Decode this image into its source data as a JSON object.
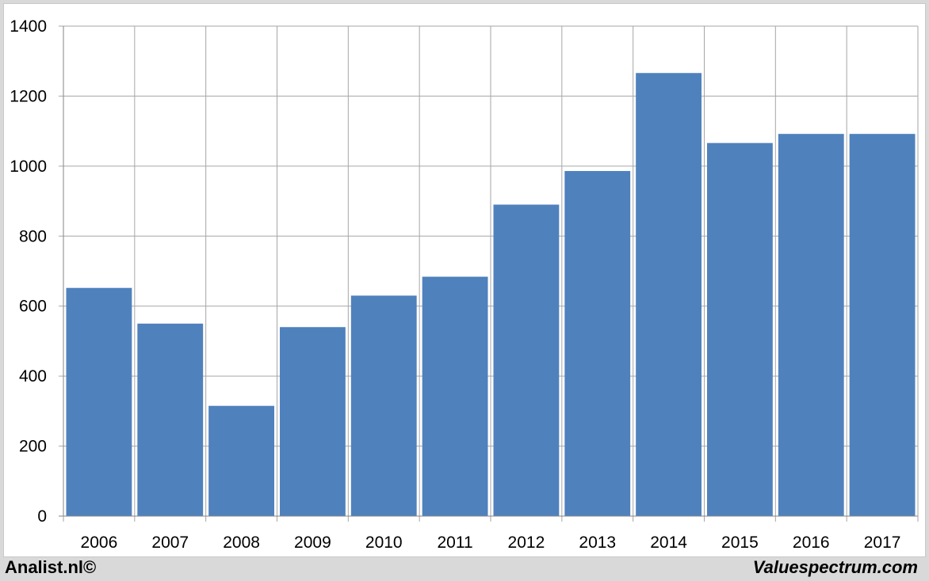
{
  "chart_data": {
    "type": "bar",
    "categories": [
      "2006",
      "2007",
      "2008",
      "2009",
      "2010",
      "2011",
      "2012",
      "2013",
      "2014",
      "2015",
      "2016",
      "2017"
    ],
    "values": [
      652,
      550,
      315,
      540,
      630,
      684,
      890,
      986,
      1266,
      1066,
      1092,
      1092
    ],
    "ylim": [
      0,
      1400
    ],
    "yticks": [
      0,
      200,
      400,
      600,
      800,
      1000,
      1200,
      1400
    ],
    "grid": true,
    "legend": "none",
    "bar_color": "#4f81bd",
    "grid_color": "#a6a6a6"
  },
  "footer": {
    "left": "Analist.nl©",
    "right": "Valuespectrum.com"
  }
}
